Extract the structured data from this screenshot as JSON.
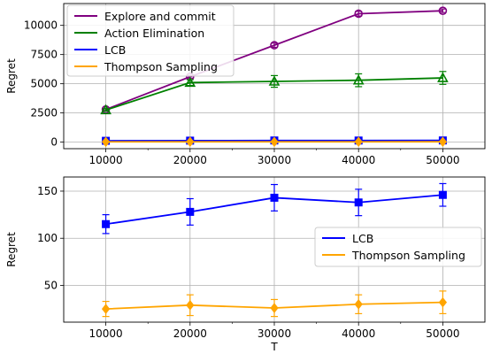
{
  "chart_data": [
    {
      "type": "line",
      "xlabel": "",
      "ylabel": "Regret",
      "x": [
        10000,
        20000,
        30000,
        40000,
        50000
      ],
      "xticks": [
        "10000",
        "20000",
        "30000",
        "40000",
        "50000"
      ],
      "yticks": [
        0,
        2500,
        5000,
        7500,
        10000
      ],
      "xlim": [
        5000,
        55000
      ],
      "ylim": [
        -560,
        11870
      ],
      "grid": true,
      "legend_position": "top-left",
      "series": [
        {
          "name": "Explore and commit",
          "color": "#800080",
          "marker": "circle",
          "values": [
            2800,
            5600,
            8300,
            11000,
            11250
          ],
          "err": [
            80,
            120,
            180,
            200,
            150
          ]
        },
        {
          "name": "Action Elimination",
          "color": "#008000",
          "marker": "triangle",
          "values": [
            2750,
            5100,
            5200,
            5300,
            5500
          ],
          "err": [
            100,
            250,
            500,
            550,
            550
          ]
        },
        {
          "name": "LCB",
          "color": "#0000ff",
          "marker": "square",
          "values": [
            115,
            128,
            143,
            138,
            146
          ],
          "err": [
            10,
            14,
            14,
            14,
            12
          ]
        },
        {
          "name": "Thompson Sampling",
          "color": "#ffa500",
          "marker": "diamond",
          "values": [
            25,
            29,
            26,
            30,
            32
          ],
          "err": [
            8,
            11,
            9,
            10,
            12
          ]
        }
      ]
    },
    {
      "type": "line",
      "xlabel": "T",
      "ylabel": "Regret",
      "x": [
        10000,
        20000,
        30000,
        40000,
        50000
      ],
      "xticks": [
        "10000",
        "20000",
        "30000",
        "40000",
        "50000"
      ],
      "yticks": [
        50,
        100,
        150
      ],
      "xlim": [
        5000,
        55000
      ],
      "ylim": [
        11,
        165
      ],
      "grid": true,
      "legend_position": "center-right",
      "series": [
        {
          "name": "LCB",
          "color": "#0000ff",
          "marker": "square",
          "values": [
            115,
            128,
            143,
            138,
            146
          ],
          "err": [
            10,
            14,
            14,
            14,
            12
          ]
        },
        {
          "name": "Thompson Sampling",
          "color": "#ffa500",
          "marker": "diamond",
          "values": [
            25,
            29,
            26,
            30,
            32
          ],
          "err": [
            8,
            11,
            9,
            10,
            12
          ]
        }
      ]
    }
  ]
}
